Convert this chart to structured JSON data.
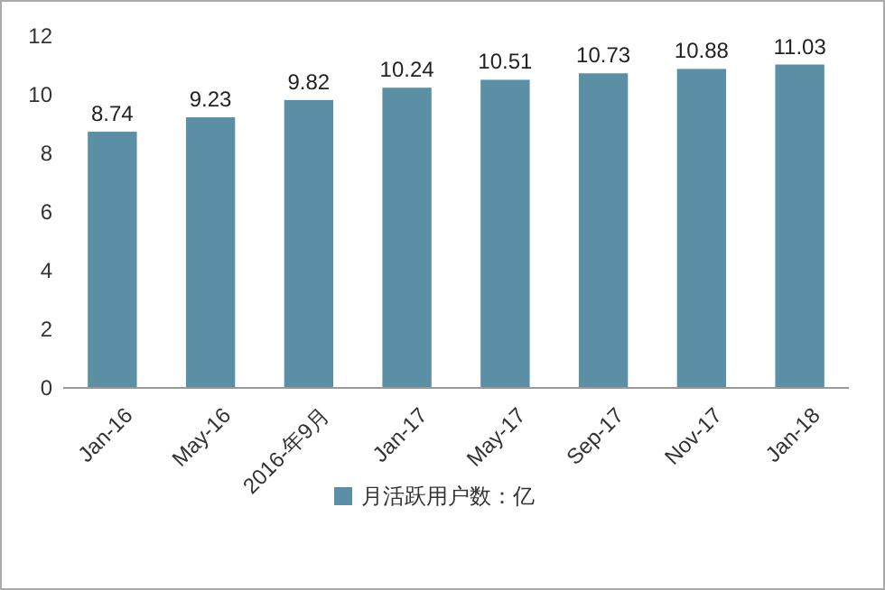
{
  "chart_data": {
    "type": "bar",
    "categories": [
      "Jan-16",
      "May-16",
      "2016-年9月",
      "Jan-17",
      "May-17",
      "Sep-17",
      "Nov-17",
      "Jan-18"
    ],
    "series": [
      {
        "name": "月活跃用户数：亿",
        "color": "#5b8fa6",
        "values": [
          8.74,
          9.23,
          9.82,
          10.24,
          10.51,
          10.73,
          10.88,
          11.03
        ]
      }
    ],
    "ylim": [
      0,
      12
    ],
    "yticks": [
      0,
      2,
      4,
      6,
      8,
      10,
      12
    ],
    "data_labels": true,
    "legend": "bottom",
    "grid": false
  }
}
